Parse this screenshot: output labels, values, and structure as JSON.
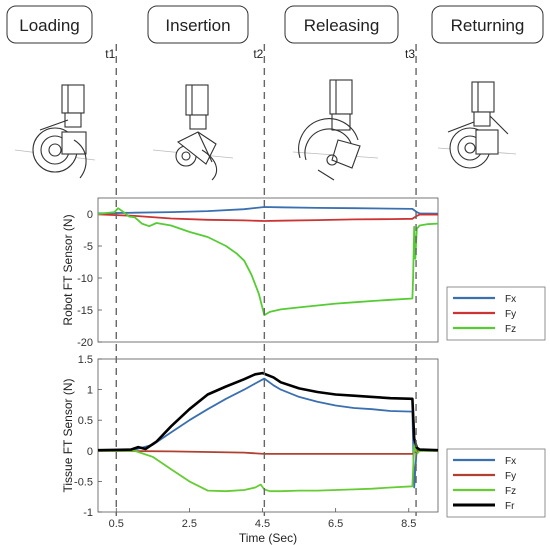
{
  "phases": [
    "Loading",
    "Insertion",
    "Releasing",
    "Returning"
  ],
  "time_markers": [
    {
      "label": "t1",
      "t": 0.5
    },
    {
      "label": "t2",
      "t": 4.55
    },
    {
      "label": "t3",
      "t": 8.7
    }
  ],
  "chart_data": [
    {
      "type": "line",
      "ylabel": "Robot FT Sensor (N)",
      "xlabel": "",
      "xlim": [
        0,
        9.3
      ],
      "ylim": [
        -20,
        2.5
      ],
      "yticks": [
        0,
        -5,
        -10,
        -15,
        -20
      ],
      "legend_position": "right",
      "series": [
        {
          "name": "Fx",
          "color": "#3a6fb0",
          "x": [
            0,
            1,
            2,
            3,
            4,
            4.55,
            5,
            6,
            7,
            8,
            8.6,
            8.72,
            8.8,
            9.3
          ],
          "y": [
            0.1,
            0.2,
            0.3,
            0.45,
            0.75,
            1.1,
            1.05,
            0.95,
            0.9,
            0.85,
            0.8,
            0.3,
            0.1,
            0.05
          ]
        },
        {
          "name": "Fy",
          "color": "#cc3333",
          "x": [
            0,
            1,
            2,
            3,
            4,
            4.55,
            5,
            6,
            7,
            8,
            8.6,
            8.72,
            8.8,
            9.3
          ],
          "y": [
            -0.05,
            -0.3,
            -0.7,
            -0.9,
            -1.0,
            -1.1,
            -1.05,
            -0.95,
            -0.85,
            -0.8,
            -0.75,
            -0.3,
            -0.1,
            -0.1
          ]
        },
        {
          "name": "Fz",
          "color": "#55cc33",
          "x": [
            0,
            0.45,
            0.55,
            0.7,
            0.85,
            1.0,
            1.2,
            1.4,
            1.6,
            2.0,
            2.5,
            3.0,
            3.5,
            3.8,
            4.0,
            4.2,
            4.4,
            4.55,
            4.7,
            5.0,
            5.5,
            6.0,
            6.5,
            7.0,
            7.5,
            8.0,
            8.6,
            8.62,
            8.65,
            8.68,
            8.72,
            8.8,
            9.0,
            9.3
          ],
          "y": [
            0,
            0.3,
            0.9,
            0.3,
            -0.4,
            -0.5,
            -1.5,
            -1.9,
            -1.4,
            -1.8,
            -2.8,
            -3.6,
            -5.0,
            -6.2,
            -7.3,
            -9.5,
            -12.5,
            -15.8,
            -15.3,
            -14.9,
            -14.6,
            -14.3,
            -14.0,
            -13.8,
            -13.6,
            -13.4,
            -13.2,
            -10,
            -2,
            -7,
            -2.3,
            -1.8,
            -1.6,
            -1.5
          ]
        }
      ]
    },
    {
      "type": "line",
      "ylabel": "Tissue FT Sensor (N)",
      "xlabel": "Time (Sec)",
      "xlim": [
        0,
        9.3
      ],
      "ylim": [
        -1,
        1.5
      ],
      "yticks": [
        1.5,
        1,
        0.5,
        0,
        -0.5,
        -1
      ],
      "xticks": [
        0.5,
        2.5,
        4.5,
        6.5,
        8.5
      ],
      "legend_position": "right",
      "series": [
        {
          "name": "Fx",
          "color": "#3a6fb0",
          "x": [
            0,
            1.0,
            1.5,
            2.0,
            2.5,
            3.0,
            3.5,
            4.0,
            4.3,
            4.55,
            4.8,
            5.0,
            5.5,
            6.0,
            6.5,
            7.0,
            7.5,
            8.0,
            8.6,
            8.65,
            8.72,
            8.8,
            9.3
          ],
          "y": [
            0,
            0.02,
            0.1,
            0.3,
            0.5,
            0.68,
            0.85,
            1.0,
            1.1,
            1.18,
            1.07,
            1.0,
            0.88,
            0.8,
            0.74,
            0.7,
            0.68,
            0.65,
            0.64,
            -0.6,
            0.05,
            0.02,
            0
          ]
        },
        {
          "name": "Fy",
          "color": "#b04030",
          "x": [
            0,
            2,
            4,
            4.55,
            6,
            8,
            8.6,
            8.72,
            9.3
          ],
          "y": [
            0,
            -0.01,
            -0.03,
            -0.05,
            -0.05,
            -0.05,
            -0.05,
            0,
            0
          ]
        },
        {
          "name": "Fz",
          "color": "#66cc33",
          "x": [
            0,
            1.0,
            1.5,
            2.0,
            2.5,
            3.0,
            3.5,
            4.0,
            4.3,
            4.45,
            4.55,
            4.7,
            5.0,
            5.5,
            6.0,
            6.5,
            7.0,
            7.5,
            8.0,
            8.6,
            8.65,
            8.72,
            8.8,
            9.3
          ],
          "y": [
            0,
            0,
            -0.1,
            -0.3,
            -0.5,
            -0.65,
            -0.66,
            -0.64,
            -0.6,
            -0.55,
            -0.63,
            -0.66,
            -0.66,
            -0.65,
            -0.65,
            -0.64,
            -0.63,
            -0.62,
            -0.6,
            -0.58,
            0.1,
            -0.05,
            0,
            0
          ]
        },
        {
          "name": "Fr",
          "color": "#000000",
          "x": [
            0,
            0.9,
            1.1,
            1.3,
            1.6,
            2.0,
            2.5,
            3.0,
            3.5,
            4.0,
            4.3,
            4.5,
            4.8,
            5.0,
            5.5,
            6.0,
            6.5,
            7.0,
            7.5,
            8.0,
            8.6,
            8.65,
            8.72,
            8.8,
            9.3
          ],
          "y": [
            0.01,
            0.02,
            0.06,
            0.03,
            0.15,
            0.4,
            0.68,
            0.92,
            1.05,
            1.17,
            1.25,
            1.27,
            1.2,
            1.12,
            1.02,
            0.96,
            0.92,
            0.9,
            0.88,
            0.86,
            0.85,
            0.2,
            0.05,
            0.02,
            0.01
          ]
        }
      ]
    }
  ]
}
